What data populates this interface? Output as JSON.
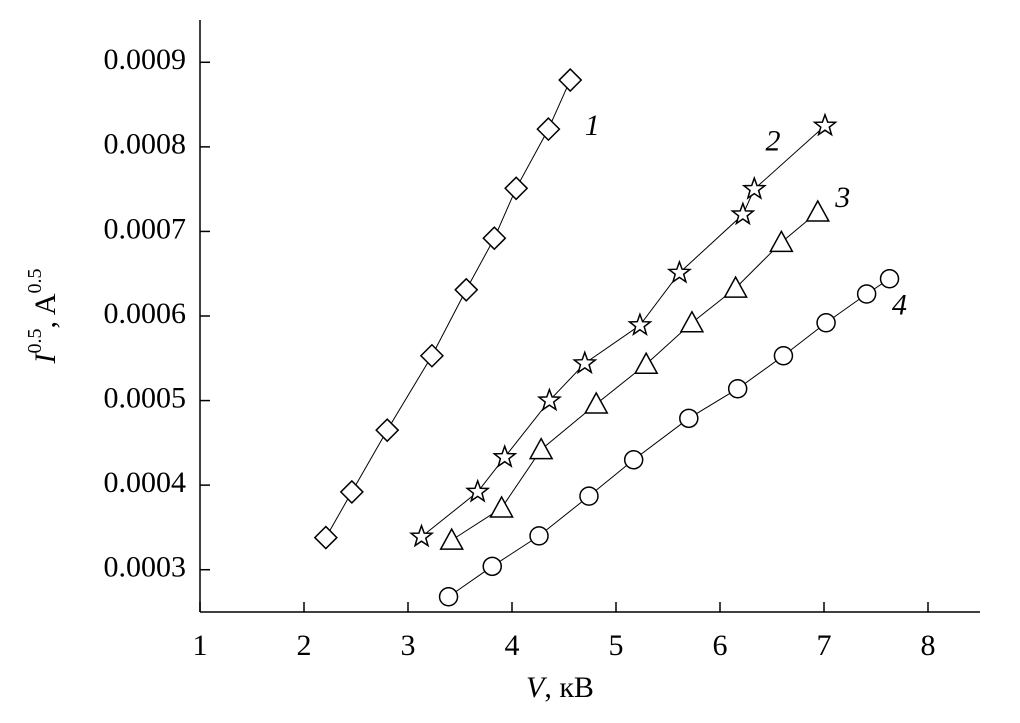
{
  "chart_data": {
    "type": "line",
    "x_label": [
      "V",
      ", кВ"
    ],
    "y_label": [
      "I",
      "0.5",
      ", A",
      "0.5"
    ],
    "xlim": [
      1,
      8.5
    ],
    "ylim": [
      0.00025,
      0.00095
    ],
    "xticks": [
      1,
      2,
      3,
      4,
      5,
      6,
      7,
      8
    ],
    "yticks": [
      0.0003,
      0.0004,
      0.0005,
      0.0006,
      0.0007,
      0.0008,
      0.0009
    ],
    "series": [
      {
        "name": "1",
        "color": "#000000",
        "marker": "diamond",
        "x": [
          2.21,
          2.46,
          2.8,
          3.23,
          3.56,
          3.83,
          4.04,
          4.35,
          4.56
        ],
        "values": [
          0.000338,
          0.000392,
          0.000465,
          0.000553,
          0.000631,
          0.000692,
          0.000751,
          0.000821,
          0.000879
        ]
      },
      {
        "name": "2",
        "color": "#000000",
        "marker": "star",
        "x": [
          3.13,
          3.67,
          3.93,
          4.36,
          4.7,
          5.23,
          5.61,
          6.22,
          6.33,
          7.01
        ],
        "values": [
          0.000339,
          0.000392,
          0.000433,
          0.0005,
          0.000544,
          0.000589,
          0.000651,
          0.00072,
          0.00075,
          0.000825
        ]
      },
      {
        "name": "3",
        "color": "#000000",
        "marker": "triangle",
        "x": [
          3.42,
          3.9,
          4.28,
          4.81,
          5.29,
          5.73,
          6.15,
          6.59,
          6.94
        ],
        "values": [
          0.000335,
          0.000373,
          0.000442,
          0.000496,
          0.000543,
          0.000592,
          0.000633,
          0.000687,
          0.000723
        ]
      },
      {
        "name": "4",
        "color": "#000000",
        "marker": "circle",
        "x": [
          3.39,
          3.81,
          4.26,
          4.74,
          5.17,
          5.7,
          6.17,
          6.61,
          7.02,
          7.41,
          7.63
        ],
        "values": [
          0.000268,
          0.000304,
          0.00034,
          0.000387,
          0.00043,
          0.000479,
          0.000514,
          0.000553,
          0.000592,
          0.000626,
          0.000644
        ]
      }
    ]
  }
}
